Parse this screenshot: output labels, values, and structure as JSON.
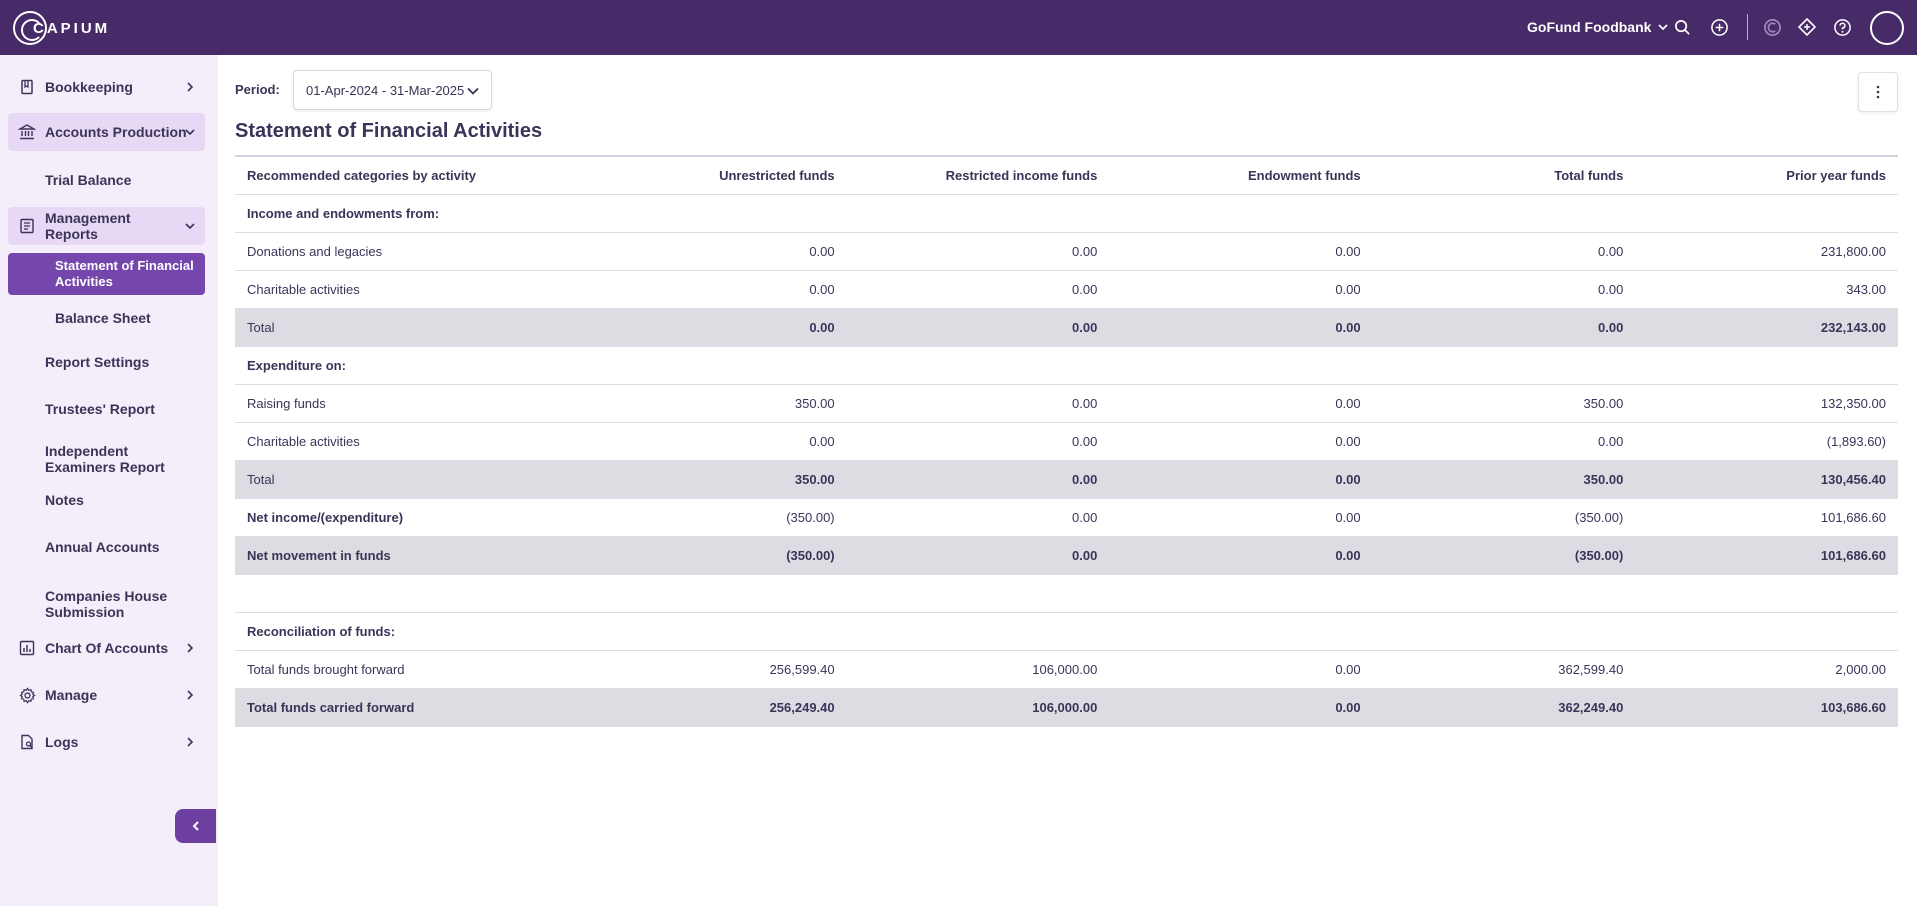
{
  "header": {
    "logo_text": "CAPIUM",
    "organisation": "GoFund Foodbank",
    "colors": {
      "topbar": "#472a68",
      "sidebar": "#f4eefb",
      "active": "#7547ad"
    }
  },
  "sidebar": {
    "bookkeeping": "Bookkeeping",
    "accounts_production": "Accounts Production",
    "trial_balance": "Trial Balance",
    "management_reports": "Management Reports",
    "statement_financial_activities": "Statement of Financial Activities",
    "balance_sheet": "Balance Sheet",
    "report_settings": "Report Settings",
    "trustees_report": "Trustees' Report",
    "independent_examiners_report": "Independent Examiners Report",
    "notes": "Notes",
    "annual_accounts": "Annual Accounts",
    "companies_house_submission": "Companies House Submission",
    "chart_of_accounts": "Chart Of Accounts",
    "manage": "Manage",
    "logs": "Logs"
  },
  "main": {
    "period_label": "Period:",
    "period_value": "01-Apr-2024 - 31-Mar-2025",
    "title": "Statement of Financial Activities",
    "columns": [
      "Recommended categories by activity",
      "Unrestricted funds",
      "Restricted income funds",
      "Endowment funds",
      "Total funds",
      "Prior year funds"
    ],
    "rows": {
      "income_heading": "Income and endowments from:",
      "donations": [
        "Donations and legacies",
        "0.00",
        "0.00",
        "0.00",
        "0.00",
        "231,800.00"
      ],
      "charitable_income": [
        "Charitable activities",
        "0.00",
        "0.00",
        "0.00",
        "0.00",
        "343.00"
      ],
      "income_total": [
        "Total",
        "0.00",
        "0.00",
        "0.00",
        "0.00",
        "232,143.00"
      ],
      "expenditure_heading": "Expenditure on:",
      "raising_funds": [
        "Raising funds",
        "350.00",
        "0.00",
        "0.00",
        "350.00",
        "132,350.00"
      ],
      "charitable_exp": [
        "Charitable activities",
        "0.00",
        "0.00",
        "0.00",
        "0.00",
        "(1,893.60)"
      ],
      "expenditure_total": [
        "Total",
        "350.00",
        "0.00",
        "0.00",
        "350.00",
        "130,456.40"
      ],
      "net_income": [
        "Net income/(expenditure)",
        "(350.00)",
        "0.00",
        "0.00",
        "(350.00)",
        "101,686.60"
      ],
      "net_movement": [
        "Net movement in funds",
        "(350.00)",
        "0.00",
        "0.00",
        "(350.00)",
        "101,686.60"
      ],
      "reconciliation_heading": "Reconciliation of funds:",
      "brought_forward": [
        "Total funds brought forward",
        "256,599.40",
        "106,000.00",
        "0.00",
        "362,599.40",
        "2,000.00"
      ],
      "carried_forward": [
        "Total funds carried forward",
        "256,249.40",
        "106,000.00",
        "0.00",
        "362,249.40",
        "103,686.60"
      ]
    }
  }
}
